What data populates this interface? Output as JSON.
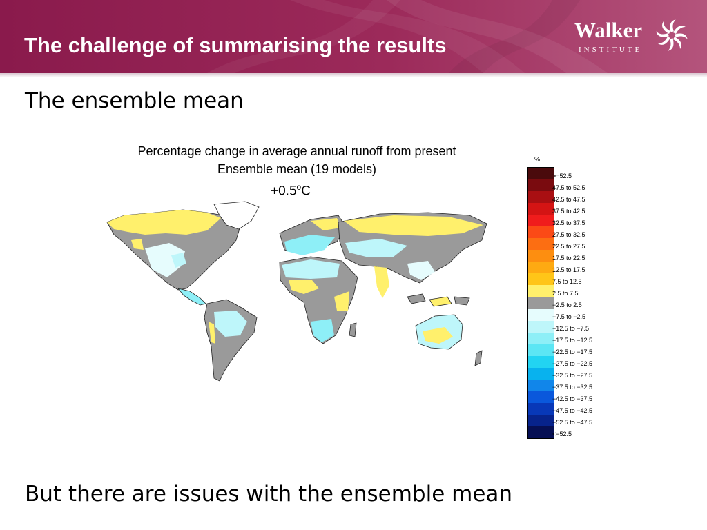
{
  "header": {
    "title": "The challenge of summarising the results",
    "logo": {
      "word": "Walker",
      "sub": "INSTITUTE",
      "icon": "swirl-logo-icon"
    }
  },
  "subtitle": "The ensemble mean",
  "figure": {
    "title_line1": "Percentage change in average annual runoff from present",
    "title_line2": "Ensemble mean (19 models)",
    "temperature": "+0.5",
    "temperature_degree": "o",
    "temperature_unit": "C",
    "legend_unit": "%",
    "legend": [
      {
        "label": ">=52.5",
        "color": "#4a0a0c"
      },
      {
        "label": "47.5 to 52.5",
        "color": "#7a0b0f"
      },
      {
        "label": "42.5 to 47.5",
        "color": "#a90f12"
      },
      {
        "label": "37.5 to 42.5",
        "color": "#d41414"
      },
      {
        "label": "32.5 to 37.5",
        "color": "#f01c1c"
      },
      {
        "label": "27.5 to 32.5",
        "color": "#fb4a16"
      },
      {
        "label": "22.5 to 27.5",
        "color": "#fc6e12"
      },
      {
        "label": "17.5 to 22.5",
        "color": "#fd8e10"
      },
      {
        "label": "12.5 to 17.5",
        "color": "#feaa12"
      },
      {
        "label": "7.5 to 12.5",
        "color": "#ffc518"
      },
      {
        "label": "2.5 to 7.5",
        "color": "#fff06c"
      },
      {
        "label": "−2.5 to 2.5",
        "color": "#9a9a9a"
      },
      {
        "label": "−7.5 to −2.5",
        "color": "#e6fcfd"
      },
      {
        "label": "−12.5 to −7.5",
        "color": "#bef6fa"
      },
      {
        "label": "−17.5 to −12.5",
        "color": "#8eeff7"
      },
      {
        "label": "−22.5 to −17.5",
        "color": "#5ce6f4"
      },
      {
        "label": "−27.5 to −22.5",
        "color": "#22d4f2"
      },
      {
        "label": "−32.5 to −27.5",
        "color": "#08b2ee"
      },
      {
        "label": "−37.5 to −32.5",
        "color": "#1186ea"
      },
      {
        "label": "−42.5 to −37.5",
        "color": "#0a58dc"
      },
      {
        "label": "−47.5 to −42.5",
        "color": "#0838b8"
      },
      {
        "label": "−52.5 to −47.5",
        "color": "#07238c"
      },
      {
        "label": "<−52.5",
        "color": "#060f54"
      }
    ]
  },
  "footer": "But there are issues with the ensemble mean"
}
